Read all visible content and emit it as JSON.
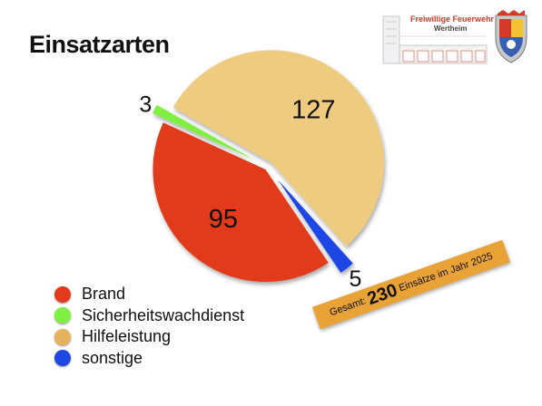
{
  "title": "Einsatzarten",
  "logo": {
    "line1": "Freiwillige Feuerwehr",
    "line2": "Wertheim"
  },
  "chart_data": {
    "type": "pie",
    "slices": [
      {
        "label": "Brand",
        "value": 95,
        "color": "#e23b1b"
      },
      {
        "label": "Sicherheitswachdienst",
        "value": 3,
        "color": "#7ff043"
      },
      {
        "label": "Hilfeleistung",
        "value": 127,
        "color": "#eecb7f"
      },
      {
        "label": "sonstige",
        "value": 5,
        "color": "#1f46e6"
      }
    ],
    "legend_position": "bottom-left"
  },
  "legend": [
    {
      "label": "Brand",
      "color": "#e23b1b"
    },
    {
      "label": "Sicherheitswachdienst",
      "color": "#7ff043"
    },
    {
      "label": "Hilfeleistung",
      "color": "#e6b25c"
    },
    {
      "label": "sonstige",
      "color": "#1f46e6"
    }
  ],
  "banner": {
    "prefix": "Gesamt:",
    "total": "230",
    "suffix": "Einsätze im Jahr 2025"
  }
}
